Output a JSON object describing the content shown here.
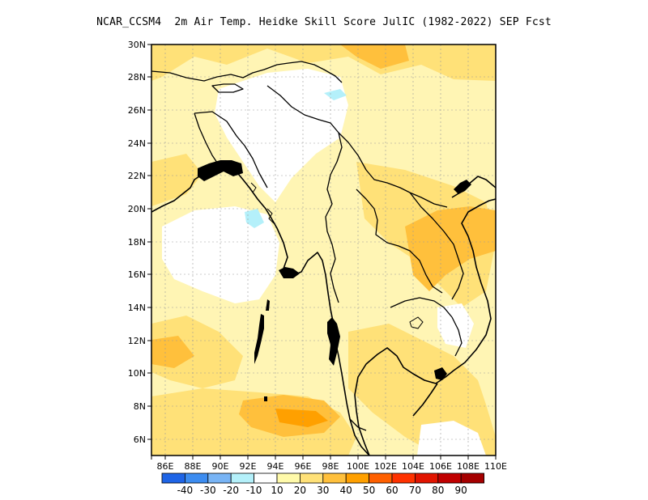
{
  "title": "NCAR_CCSM4  2m Air Temp. Heidke Skill Score JulIC (1982-2022) SEP Fcst",
  "map": {
    "region": "Mainland Southeast Asia",
    "lon_range": [
      85,
      110
    ],
    "lat_range": [
      5,
      30
    ],
    "lon_ticks": [
      "86E",
      "88E",
      "90E",
      "92E",
      "94E",
      "96E",
      "98E",
      "100E",
      "102E",
      "104E",
      "106E",
      "108E",
      "110E"
    ],
    "lat_ticks": [
      "30N",
      "28N",
      "26N",
      "24N",
      "22N",
      "20N",
      "18N",
      "16N",
      "14N",
      "12N",
      "10N",
      "8N",
      "6N"
    ],
    "grid": true
  },
  "colorbar": {
    "colors": [
      "#1e64e6",
      "#3c8cf0",
      "#78b4f5",
      "#b4f0fa",
      "#ffffff",
      "#fffaaa",
      "#ffe178",
      "#ffc03c",
      "#ffa000",
      "#ff6000",
      "#ff3200",
      "#e11400",
      "#c00000",
      "#a50000"
    ],
    "labels": [
      "-40",
      "-30",
      "-20",
      "-10",
      "10",
      "20",
      "30",
      "40",
      "50",
      "60",
      "70",
      "80",
      "90"
    ]
  }
}
